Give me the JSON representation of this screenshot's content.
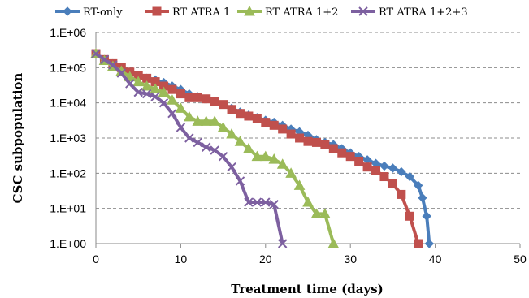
{
  "chart_data": {
    "type": "line",
    "title": "",
    "xlabel": "Treatment time (days)",
    "ylabel": "CSC subpopulation",
    "x_ticks": [
      "0",
      "10",
      "20",
      "30",
      "40",
      "50"
    ],
    "y_ticks": [
      "1.E+00",
      "1.E+01",
      "1.E+02",
      "1.E+03",
      "1.E+04",
      "1.E+05",
      "1.E+06"
    ],
    "xlim": [
      0,
      50
    ],
    "ylim": [
      1,
      1000000
    ],
    "y_scale": "log",
    "grid": "horizontal dashed",
    "legend_position": "top",
    "series": [
      {
        "name": "RT-only",
        "color": "#4a7ebb",
        "marker": "diamond",
        "x": [
          0,
          1,
          2,
          3,
          4,
          5,
          6,
          7,
          8,
          9,
          10,
          11,
          12,
          13,
          14,
          15,
          16,
          17,
          18,
          19,
          20,
          21,
          22,
          23,
          24,
          25,
          26,
          27,
          28,
          29,
          30,
          31,
          32,
          33,
          34,
          35,
          36,
          37,
          38,
          38.5,
          39,
          39.3
        ],
        "y": [
          250000,
          170000,
          130000,
          100000,
          75000,
          60000,
          50000,
          45000,
          38000,
          30000,
          24000,
          18000,
          15000,
          13000,
          11000,
          9000,
          7000,
          5500,
          4500,
          3800,
          3200,
          2800,
          2300,
          1800,
          1500,
          1200,
          900,
          750,
          650,
          500,
          380,
          300,
          240,
          190,
          160,
          140,
          110,
          80,
          45,
          20,
          6,
          1
        ]
      },
      {
        "name": "RT ATRA 1",
        "color": "#c0504d",
        "marker": "square",
        "x": [
          0,
          1,
          2,
          3,
          4,
          5,
          6,
          7,
          8,
          9,
          10,
          11,
          12,
          13,
          14,
          15,
          16,
          17,
          18,
          19,
          20,
          21,
          22,
          23,
          24,
          25,
          26,
          27,
          28,
          29,
          30,
          31,
          32,
          33,
          34,
          35,
          36,
          37,
          38
        ],
        "y": [
          250000,
          170000,
          130000,
          100000,
          75000,
          60000,
          50000,
          40000,
          30000,
          24000,
          18000,
          14000,
          14000,
          13000,
          11000,
          9000,
          6500,
          5000,
          4200,
          3500,
          2800,
          2300,
          1800,
          1300,
          1000,
          800,
          750,
          650,
          500,
          380,
          300,
          220,
          150,
          120,
          80,
          50,
          25,
          6,
          1
        ]
      },
      {
        "name": "RT ATRA 1+2",
        "color": "#9bbb59",
        "marker": "triangle",
        "x": [
          0,
          1,
          2,
          3,
          4,
          5,
          6,
          7,
          8,
          9,
          10,
          11,
          12,
          13,
          14,
          15,
          16,
          17,
          18,
          19,
          20,
          21,
          22,
          23,
          24,
          25,
          26,
          27,
          28
        ],
        "y": [
          250000,
          160000,
          110000,
          80000,
          55000,
          40000,
          30000,
          25000,
          20000,
          12000,
          7000,
          4000,
          3000,
          3000,
          3000,
          2000,
          1300,
          800,
          500,
          300,
          300,
          250,
          180,
          100,
          45,
          15,
          7,
          7,
          1
        ]
      },
      {
        "name": "RT ATRA 1+2+3",
        "color": "#7d60a0",
        "marker": "x",
        "x": [
          0,
          1,
          2,
          3,
          4,
          5,
          6,
          7,
          8,
          9,
          10,
          11,
          12,
          13,
          14,
          15,
          16,
          17,
          18,
          19,
          20,
          21,
          22
        ],
        "y": [
          250000,
          170000,
          120000,
          70000,
          35000,
          20000,
          18000,
          15000,
          10000,
          5000,
          2000,
          1000,
          750,
          550,
          450,
          300,
          150,
          60,
          15,
          15,
          15,
          13,
          1
        ]
      }
    ]
  }
}
